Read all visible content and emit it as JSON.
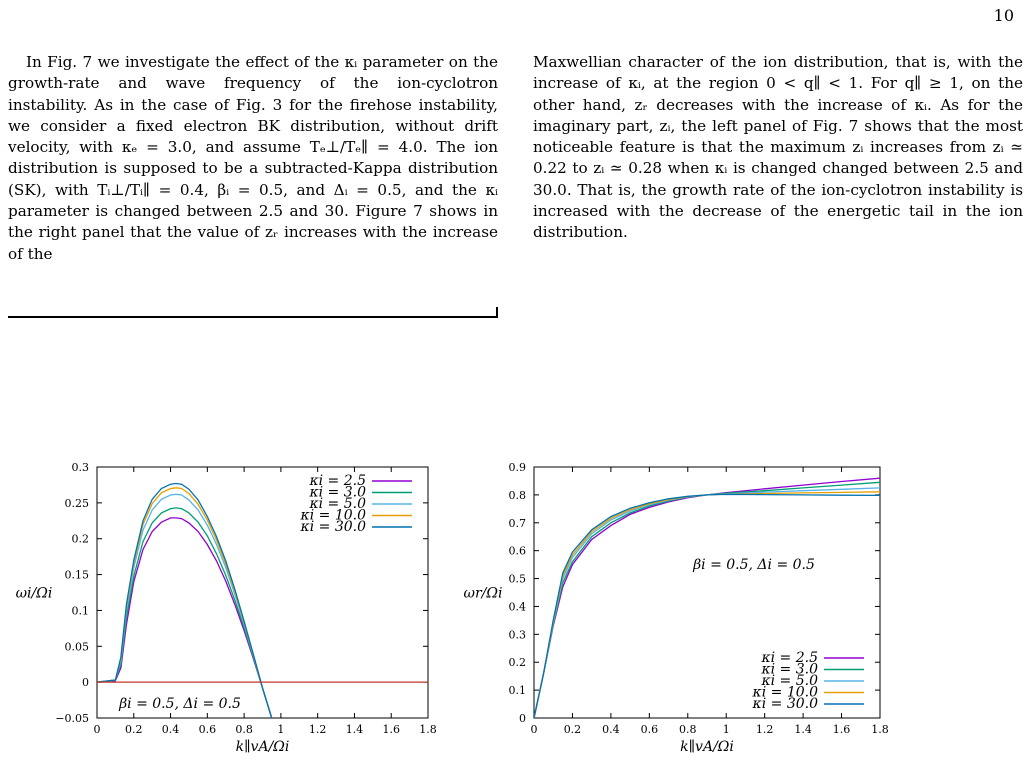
{
  "page_number": "10",
  "text": {
    "left_paragraph": "In Fig. 7 we investigate the effect of the κᵢ parameter on the growth-rate and wave frequency of the ion-cyclotron instability. As in the case of Fig. 3 for the firehose instability, we consider a fixed electron BK distribution, without drift velocity, with κₑ = 3.0, and assume Tₑ⊥/Tₑ∥ = 4.0. The ion distribution is supposed to be a subtracted-Kappa distribution (SK), with Tᵢ⊥/Tᵢ∥ = 0.4, βᵢ = 0.5, and Δᵢ = 0.5, and the κᵢ parameter is changed between 2.5 and 30. Figure 7 shows in the right panel that the value of zᵣ increases with the increase of the",
    "right_paragraph": "Maxwellian character of the ion distribution, that is, with the increase of κᵢ, at the region 0 < q∥ < 1. For q∥ ≥ 1, on the other hand, zᵣ decreases with the increase of κᵢ. As for the imaginary part, zᵢ, the left panel of Fig. 7 shows that the most noticeable feature is that the maximum zᵢ increases from zᵢ ≃ 0.22 to zᵢ ≃ 0.28 when κᵢ is changed changed between 2.5 and 30.0. That is, the growth rate of the ion-cyclotron instability is increased with the decrease of the energetic tail in the ion distribution."
  },
  "colors": {
    "k2_5": "#9400d3",
    "k3_0": "#009e73",
    "k5_0": "#56b4e9",
    "k10_0": "#e69f00",
    "k30_0": "#0072b2",
    "zero_line": "#c0392b"
  },
  "chart_data": [
    {
      "type": "line",
      "title": "",
      "xlabel": "k∥vA/Ωi",
      "ylabel": "ωi/Ωi",
      "annotation": "βi = 0.5, Δi = 0.5",
      "xlim": [
        0,
        1.8
      ],
      "ylim": [
        -0.05,
        0.3
      ],
      "xticks": [
        "0",
        "0.2",
        "0.4",
        "0.6",
        "0.8",
        "1",
        "1.2",
        "1.4",
        "1.6",
        "1.8"
      ],
      "yticks": [
        "−0.05",
        "0",
        "0.05",
        "0.1",
        "0.15",
        "0.2",
        "0.25",
        "0.3"
      ],
      "legend_position": "top-right",
      "series": [
        {
          "name": "κi = 2.5",
          "color_key": "k2_5",
          "x": [
            0,
            0.1,
            0.13,
            0.16,
            0.2,
            0.25,
            0.3,
            0.35,
            0.4,
            0.43,
            0.46,
            0.5,
            0.55,
            0.6,
            0.65,
            0.7,
            0.75,
            0.8,
            0.85,
            0.9,
            0.95
          ],
          "y": [
            0,
            0.002,
            0.02,
            0.08,
            0.14,
            0.185,
            0.21,
            0.223,
            0.229,
            0.229,
            0.228,
            0.222,
            0.21,
            0.192,
            0.169,
            0.141,
            0.108,
            0.072,
            0.033,
            -0.008,
            -0.05
          ]
        },
        {
          "name": "κi = 3.0",
          "color_key": "k3_0",
          "x": [
            0,
            0.1,
            0.13,
            0.16,
            0.2,
            0.25,
            0.3,
            0.35,
            0.4,
            0.43,
            0.46,
            0.5,
            0.55,
            0.6,
            0.65,
            0.7,
            0.75,
            0.8,
            0.85,
            0.9,
            0.95
          ],
          "y": [
            0,
            0.003,
            0.025,
            0.09,
            0.148,
            0.196,
            0.222,
            0.236,
            0.242,
            0.243,
            0.242,
            0.236,
            0.223,
            0.204,
            0.179,
            0.149,
            0.114,
            0.076,
            0.035,
            -0.008,
            -0.05
          ]
        },
        {
          "name": "κi = 5.0",
          "color_key": "k5_0",
          "x": [
            0,
            0.1,
            0.13,
            0.16,
            0.2,
            0.25,
            0.3,
            0.35,
            0.4,
            0.43,
            0.46,
            0.5,
            0.55,
            0.6,
            0.65,
            0.7,
            0.75,
            0.8,
            0.85,
            0.9,
            0.95
          ],
          "y": [
            0,
            0.003,
            0.03,
            0.1,
            0.16,
            0.212,
            0.24,
            0.255,
            0.261,
            0.262,
            0.261,
            0.254,
            0.24,
            0.219,
            0.192,
            0.16,
            0.122,
            0.081,
            0.037,
            -0.008,
            -0.05
          ]
        },
        {
          "name": "κi = 10.0",
          "color_key": "k10_0",
          "x": [
            0,
            0.1,
            0.13,
            0.16,
            0.2,
            0.25,
            0.3,
            0.35,
            0.4,
            0.43,
            0.46,
            0.5,
            0.55,
            0.6,
            0.65,
            0.7,
            0.75,
            0.8,
            0.85,
            0.9,
            0.95
          ],
          "y": [
            0,
            0.003,
            0.033,
            0.105,
            0.166,
            0.22,
            0.249,
            0.264,
            0.27,
            0.271,
            0.27,
            0.263,
            0.248,
            0.226,
            0.198,
            0.165,
            0.126,
            0.083,
            0.038,
            -0.008,
            -0.05
          ]
        },
        {
          "name": "κi = 30.0",
          "color_key": "k30_0",
          "x": [
            0,
            0.1,
            0.13,
            0.16,
            0.2,
            0.25,
            0.3,
            0.35,
            0.4,
            0.43,
            0.46,
            0.5,
            0.55,
            0.6,
            0.65,
            0.7,
            0.75,
            0.8,
            0.85,
            0.9,
            0.95
          ],
          "y": [
            0,
            0.003,
            0.035,
            0.108,
            0.17,
            0.225,
            0.255,
            0.27,
            0.276,
            0.277,
            0.276,
            0.269,
            0.254,
            0.231,
            0.203,
            0.169,
            0.129,
            0.085,
            0.039,
            -0.008,
            -0.05
          ]
        },
        {
          "name": "",
          "color_key": "zero_line",
          "x": [
            0,
            1.8
          ],
          "y": [
            0,
            0
          ]
        }
      ]
    },
    {
      "type": "line",
      "title": "",
      "xlabel": "k∥vA/Ωi",
      "ylabel": "ωr/Ωi",
      "annotation": "βi = 0.5, Δi = 0.5",
      "xlim": [
        0,
        1.8
      ],
      "ylim": [
        0,
        0.9
      ],
      "xticks": [
        "0",
        "0.2",
        "0.4",
        "0.6",
        "0.8",
        "1",
        "1.2",
        "1.4",
        "1.6",
        "1.8"
      ],
      "yticks": [
        "0",
        "0.1",
        "0.2",
        "0.3",
        "0.4",
        "0.5",
        "0.6",
        "0.7",
        "0.8",
        "0.9"
      ],
      "legend_position": "bottom-right",
      "series": [
        {
          "name": "κi = 2.5",
          "color_key": "k2_5",
          "x": [
            0,
            0.05,
            0.1,
            0.15,
            0.2,
            0.3,
            0.4,
            0.5,
            0.6,
            0.7,
            0.8,
            0.9,
            1.0,
            1.2,
            1.4,
            1.6,
            1.8
          ],
          "y": [
            0,
            0.16,
            0.33,
            0.47,
            0.55,
            0.64,
            0.69,
            0.73,
            0.755,
            0.775,
            0.79,
            0.8,
            0.808,
            0.822,
            0.835,
            0.848,
            0.86
          ]
        },
        {
          "name": "κi = 3.0",
          "color_key": "k3_0",
          "x": [
            0,
            0.05,
            0.1,
            0.15,
            0.2,
            0.3,
            0.4,
            0.5,
            0.6,
            0.7,
            0.8,
            0.9,
            1.0,
            1.2,
            1.4,
            1.6,
            1.8
          ],
          "y": [
            0,
            0.16,
            0.335,
            0.485,
            0.56,
            0.65,
            0.7,
            0.735,
            0.76,
            0.778,
            0.792,
            0.8,
            0.806,
            0.815,
            0.825,
            0.835,
            0.845
          ]
        },
        {
          "name": "κi = 5.0",
          "color_key": "k5_0",
          "x": [
            0,
            0.05,
            0.1,
            0.15,
            0.2,
            0.3,
            0.4,
            0.5,
            0.6,
            0.7,
            0.8,
            0.9,
            1.0,
            1.2,
            1.4,
            1.6,
            1.8
          ],
          "y": [
            0,
            0.16,
            0.34,
            0.5,
            0.575,
            0.66,
            0.71,
            0.742,
            0.765,
            0.781,
            0.793,
            0.8,
            0.804,
            0.81,
            0.815,
            0.82,
            0.825
          ]
        },
        {
          "name": "κi = 10.0",
          "color_key": "k10_0",
          "x": [
            0,
            0.05,
            0.1,
            0.15,
            0.2,
            0.3,
            0.4,
            0.5,
            0.6,
            0.7,
            0.8,
            0.9,
            1.0,
            1.2,
            1.4,
            1.6,
            1.8
          ],
          "y": [
            0,
            0.16,
            0.345,
            0.51,
            0.585,
            0.668,
            0.716,
            0.747,
            0.768,
            0.783,
            0.794,
            0.8,
            0.803,
            0.805,
            0.807,
            0.809,
            0.811
          ]
        },
        {
          "name": "κi = 30.0",
          "color_key": "k30_0",
          "x": [
            0,
            0.05,
            0.1,
            0.15,
            0.2,
            0.3,
            0.4,
            0.5,
            0.6,
            0.7,
            0.8,
            0.9,
            1.0,
            1.2,
            1.4,
            1.6,
            1.8
          ],
          "y": [
            0,
            0.16,
            0.35,
            0.52,
            0.595,
            0.675,
            0.722,
            0.752,
            0.772,
            0.786,
            0.795,
            0.8,
            0.802,
            0.801,
            0.8,
            0.799,
            0.798
          ]
        }
      ]
    }
  ]
}
